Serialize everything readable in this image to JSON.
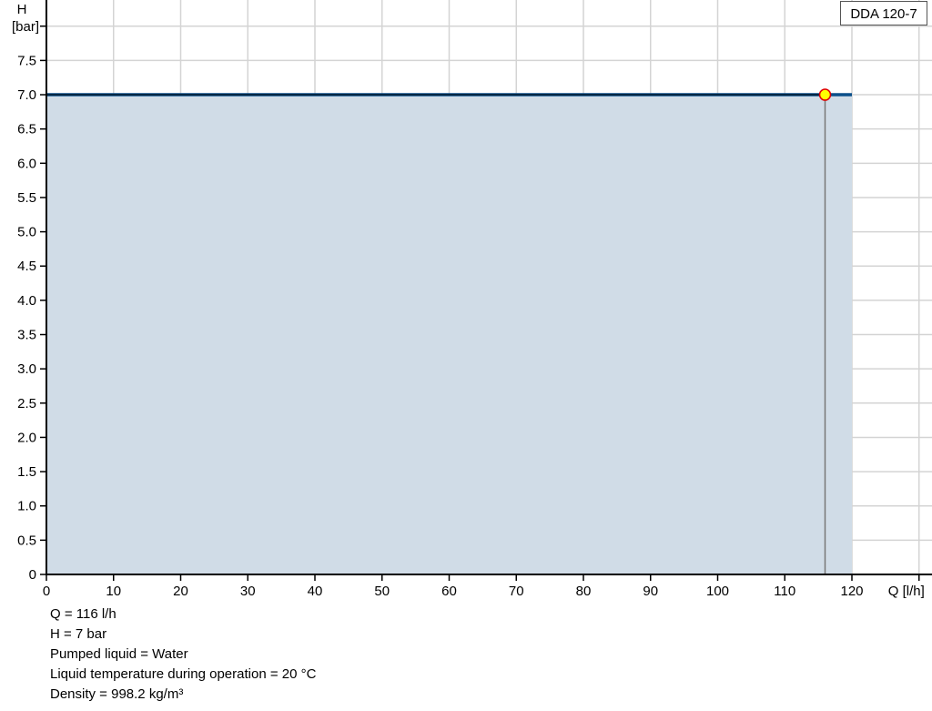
{
  "chart_data": {
    "type": "area",
    "xlabel": "Q [l/h]",
    "ylabel_line1": "H",
    "ylabel_line2": "[bar]",
    "xlim": [
      0,
      130
    ],
    "ylim": [
      0,
      8
    ],
    "xticks": [
      0,
      10,
      20,
      30,
      40,
      50,
      60,
      70,
      80,
      90,
      100,
      110,
      120
    ],
    "yticks": [
      0,
      0.5,
      1.0,
      1.5,
      2.0,
      2.5,
      3.0,
      3.5,
      4.0,
      4.5,
      5.0,
      5.5,
      6.0,
      6.5,
      7.0,
      7.5
    ],
    "grid": true,
    "legend": "top-right",
    "series": [
      {
        "name": "DDA 120-7",
        "x": [
          0,
          120
        ],
        "y": [
          7,
          7
        ],
        "color": "#0b4f8a",
        "fill": "#d0dce7"
      }
    ],
    "duty_point": {
      "x": 116,
      "y": 7,
      "fill": "#ffff00",
      "stroke": "#e00000"
    }
  },
  "info": [
    "Q = 116 l/h",
    "H = 7 bar",
    "Pumped liquid = Water",
    "Liquid temperature during operation = 20 °C",
    "Density = 998.2 kg/m³"
  ]
}
